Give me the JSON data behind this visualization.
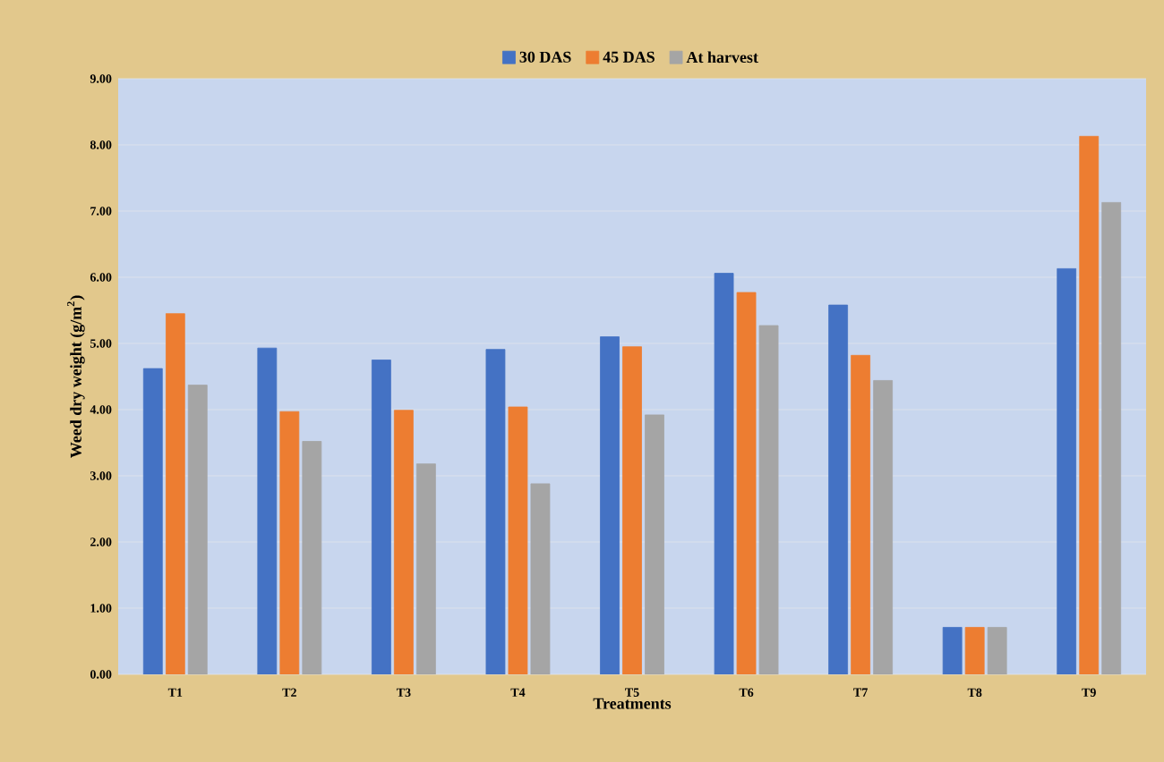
{
  "chart_data": {
    "type": "bar",
    "xlabel": "Treatments",
    "ylabel": "Weed dry weight (g/m$^{2}$)",
    "categories": [
      "T1",
      "T2",
      "T3",
      "T4",
      "T5",
      "T6",
      "T7",
      "T8",
      "T9"
    ],
    "series": [
      {
        "name": "30 DAS",
        "color": "#4472c4",
        "values": [
          4.62,
          4.93,
          4.75,
          4.91,
          5.1,
          6.06,
          5.58,
          0.71,
          6.13
        ]
      },
      {
        "name": "45 DAS",
        "color": "#ed7d31",
        "values": [
          5.45,
          3.97,
          3.99,
          4.04,
          4.95,
          5.77,
          4.82,
          0.71,
          8.13
        ]
      },
      {
        "name": "At harvest",
        "color": "#a5a5a5",
        "values": [
          4.37,
          3.52,
          3.18,
          2.88,
          3.92,
          5.27,
          4.44,
          0.71,
          7.13
        ]
      }
    ],
    "ylim": [
      0,
      9
    ],
    "yticks": [
      {
        "value": 0,
        "label": "0.00"
      },
      {
        "value": 1,
        "label": "1.00"
      },
      {
        "value": 2,
        "label": "2.00"
      },
      {
        "value": 3,
        "label": "3.00"
      },
      {
        "value": 4,
        "label": "4.00"
      },
      {
        "value": 5,
        "label": "5.00"
      },
      {
        "value": 6,
        "label": "6.00"
      },
      {
        "value": 7,
        "label": "7.00"
      },
      {
        "value": 8,
        "label": "8.00"
      },
      {
        "value": 9,
        "label": "9.00"
      }
    ],
    "grid": "y",
    "legend": "top"
  }
}
